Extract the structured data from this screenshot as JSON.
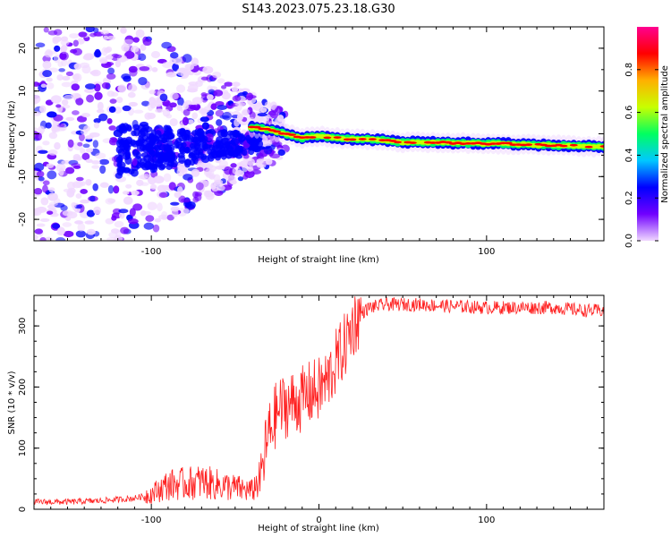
{
  "figure": {
    "title": "S143.2023.075.23.18.G30"
  },
  "colorbar": {
    "label": "Normalized spectral amplitude",
    "ticks": [
      0.0,
      0.2,
      0.4,
      0.6,
      0.8
    ],
    "tick_labels": [
      "0.0",
      "0.2",
      "0.4",
      "0.6",
      "0.8"
    ],
    "stops": [
      "#f0d8ff",
      "#7000ff",
      "#0000ff",
      "#00c8ff",
      "#00ff60",
      "#c8ff00",
      "#ffb000",
      "#ff0000",
      "#ff0090"
    ]
  },
  "chart_data": [
    {
      "type": "heatmap",
      "title": "",
      "xlabel": "Height of straight line (km)",
      "ylabel": "Frequency (Hz)",
      "xlim": [
        -170,
        170
      ],
      "ylim": [
        -25,
        25
      ],
      "xticks": [
        -100,
        0,
        100
      ],
      "xtick_labels": [
        "-100",
        "",
        "100"
      ],
      "yticks": [
        20,
        10,
        0,
        -10,
        -20
      ],
      "ytick_labels": [
        "20",
        "10",
        "0",
        "-10",
        "-20"
      ],
      "ridge": {
        "x": [
          -40,
          -30,
          -20,
          -10,
          0,
          10,
          20,
          30,
          40,
          50,
          60,
          70,
          80,
          90,
          100,
          110,
          120,
          130,
          140,
          150,
          160,
          170
        ],
        "freq": [
          1.5,
          1,
          0,
          -1,
          -0.5,
          -1,
          -1.2,
          -1.3,
          -1.5,
          -2,
          -2,
          -2,
          -2.1,
          -2.2,
          -2.3,
          -2.3,
          -2.5,
          -2.6,
          -2.7,
          -2.8,
          -2.9,
          -3
        ]
      },
      "scatter_zone_xmax": -40
    },
    {
      "type": "line",
      "title": "",
      "xlabel": "Height of straight line (km)",
      "ylabel": "SNR (10 * v/v)",
      "xlim": [
        -170,
        170
      ],
      "ylim": [
        0,
        350
      ],
      "xticks": [
        -100,
        0,
        100
      ],
      "xtick_labels": [
        "-100",
        "0",
        "100"
      ],
      "yticks": [
        0,
        100,
        200,
        300
      ],
      "ytick_labels": [
        "0",
        "100",
        "200",
        "300"
      ],
      "color": "#ff2020",
      "series": [
        {
          "x": [
            -170,
            -150,
            -130,
            -110,
            -100,
            -90,
            -80,
            -70,
            -60,
            -50,
            -40,
            -35,
            -30,
            -25,
            -20,
            -15,
            -10,
            -5,
            0,
            5,
            10,
            15,
            20,
            25,
            30,
            40,
            50,
            60,
            80,
            100,
            120,
            140,
            160,
            170
          ],
          "values": [
            12,
            12,
            14,
            18,
            25,
            40,
            42,
            45,
            40,
            35,
            30,
            50,
            120,
            160,
            170,
            175,
            180,
            190,
            195,
            210,
            240,
            265,
            300,
            320,
            330,
            335,
            335,
            335,
            332,
            330,
            330,
            330,
            325,
            325
          ]
        }
      ]
    }
  ]
}
